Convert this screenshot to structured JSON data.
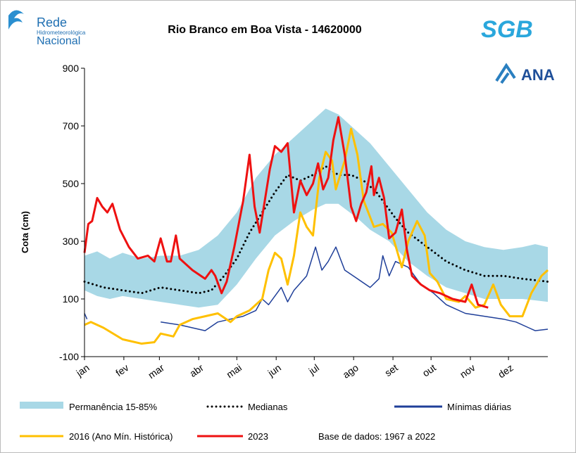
{
  "header": {
    "logo_left": [
      "Rede",
      "Hidrometeorológica",
      "Nacional"
    ],
    "logo_right_top": "SGB",
    "logo_right_bottom": "ANA"
  },
  "chart_data": {
    "type": "line",
    "title": "Rio Branco em Boa Vista - 14620000",
    "y_label": "Cota (cm)",
    "note": "Base de dados: 1967 a 2022",
    "xlim": [
      0,
      365
    ],
    "xticks": [
      {
        "value": 0,
        "label": "jan"
      },
      {
        "value": 31,
        "label": "fev"
      },
      {
        "value": 59,
        "label": "mar"
      },
      {
        "value": 90,
        "label": "abr"
      },
      {
        "value": 120,
        "label": "mai"
      },
      {
        "value": 151,
        "label": "jun"
      },
      {
        "value": 181,
        "label": "jul"
      },
      {
        "value": 212,
        "label": "ago"
      },
      {
        "value": 243,
        "label": "set"
      },
      {
        "value": 273,
        "label": "out"
      },
      {
        "value": 304,
        "label": "nov"
      },
      {
        "value": 334,
        "label": "dez"
      }
    ],
    "ylim": [
      -100,
      900
    ],
    "yticks": [
      -100,
      100,
      300,
      500,
      700,
      900
    ],
    "band": {
      "name": "Permanência 15-85%",
      "color": "#a8d8e6",
      "x": [
        0,
        10,
        20,
        30,
        45,
        60,
        75,
        90,
        105,
        120,
        135,
        150,
        165,
        180,
        190,
        200,
        215,
        225,
        240,
        255,
        270,
        285,
        300,
        315,
        330,
        345,
        355,
        365
      ],
      "upper": [
        250,
        265,
        240,
        260,
        240,
        250,
        250,
        270,
        320,
        400,
        520,
        600,
        660,
        720,
        760,
        740,
        680,
        640,
        560,
        480,
        400,
        340,
        300,
        280,
        270,
        280,
        290,
        280
      ],
      "lower": [
        130,
        110,
        100,
        110,
        100,
        90,
        80,
        70,
        80,
        150,
        240,
        320,
        370,
        410,
        430,
        430,
        380,
        340,
        300,
        230,
        180,
        140,
        120,
        100,
        100,
        100,
        95,
        90
      ]
    },
    "series": [
      {
        "name": "Medianas",
        "color": "#000000",
        "style": "dotted",
        "x": [
          0,
          15,
          30,
          45,
          60,
          75,
          90,
          100,
          110,
          120,
          130,
          140,
          150,
          160,
          170,
          180,
          190,
          200,
          210,
          220,
          230,
          245,
          255,
          270,
          285,
          300,
          315,
          330,
          345,
          365
        ],
        "values": [
          160,
          140,
          130,
          120,
          140,
          130,
          120,
          130,
          180,
          240,
          330,
          400,
          470,
          530,
          510,
          530,
          560,
          530,
          530,
          510,
          470,
          380,
          330,
          280,
          230,
          200,
          180,
          180,
          170,
          160
        ]
      },
      {
        "name": "Mínimas diárias",
        "color": "#1f3f99",
        "style": "solid",
        "x": [
          0,
          2,
          58,
          60,
          75,
          85,
          95,
          105,
          115,
          125,
          135,
          140,
          145,
          155,
          160,
          165,
          175,
          182,
          187,
          192,
          198,
          205,
          215,
          225,
          232,
          235,
          240,
          245,
          255,
          265,
          275,
          285,
          300,
          315,
          330,
          340,
          350,
          355,
          365
        ],
        "values": [
          50,
          30,
          null,
          20,
          10,
          0,
          -10,
          20,
          30,
          40,
          60,
          100,
          80,
          140,
          90,
          130,
          180,
          280,
          200,
          230,
          280,
          200,
          170,
          140,
          170,
          250,
          180,
          230,
          210,
          150,
          120,
          80,
          50,
          40,
          30,
          20,
          0,
          -10,
          -5
        ]
      },
      {
        "name": "2016 (Ano Mín. Histórica)",
        "color": "#ffc000",
        "style": "solid",
        "x": [
          0,
          5,
          15,
          30,
          45,
          55,
          60,
          70,
          75,
          85,
          95,
          105,
          115,
          120,
          130,
          140,
          145,
          150,
          155,
          160,
          165,
          170,
          175,
          180,
          185,
          190,
          195,
          198,
          205,
          210,
          215,
          220,
          228,
          235,
          242,
          250,
          255,
          262,
          268,
          272,
          278,
          285,
          295,
          300,
          308,
          315,
          322,
          328,
          335,
          345,
          352,
          360,
          365
        ],
        "values": [
          10,
          20,
          0,
          -40,
          -55,
          -50,
          -20,
          -30,
          10,
          30,
          40,
          50,
          20,
          40,
          60,
          100,
          200,
          260,
          240,
          150,
          250,
          400,
          350,
          320,
          520,
          610,
          580,
          480,
          580,
          690,
          600,
          440,
          350,
          360,
          330,
          210,
          300,
          370,
          320,
          190,
          160,
          100,
          90,
          110,
          70,
          80,
          150,
          80,
          40,
          40,
          120,
          180,
          200
        ]
      },
      {
        "name": "2023",
        "color": "#ee1111",
        "style": "solid",
        "x": [
          0,
          3,
          6,
          10,
          14,
          18,
          22,
          28,
          35,
          42,
          50,
          55,
          60,
          65,
          68,
          72,
          75,
          85,
          95,
          100,
          103,
          108,
          112,
          118,
          125,
          130,
          134,
          138,
          142,
          146,
          150,
          155,
          160,
          165,
          170,
          175,
          180,
          184,
          188,
          192,
          196,
          200,
          205,
          210,
          214,
          218,
          222,
          226,
          228,
          232,
          236,
          240,
          245,
          250,
          254,
          258,
          265,
          272,
          280,
          290,
          300,
          305,
          310,
          318
        ],
        "values": [
          260,
          360,
          370,
          450,
          420,
          400,
          430,
          340,
          280,
          240,
          250,
          230,
          310,
          230,
          230,
          320,
          240,
          200,
          170,
          200,
          180,
          120,
          160,
          280,
          440,
          600,
          420,
          330,
          440,
          550,
          630,
          610,
          640,
          400,
          510,
          460,
          500,
          570,
          480,
          520,
          650,
          730,
          600,
          420,
          370,
          430,
          470,
          560,
          460,
          520,
          450,
          310,
          330,
          410,
          270,
          180,
          150,
          130,
          120,
          100,
          90,
          150,
          80,
          70
        ]
      }
    ]
  }
}
